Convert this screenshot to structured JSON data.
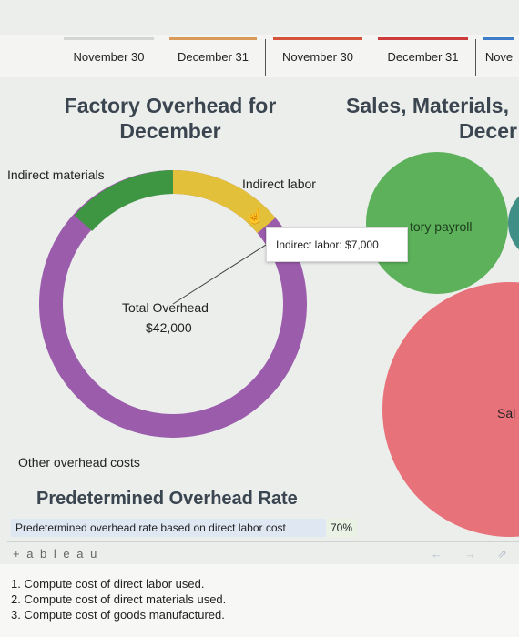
{
  "tabs": [
    {
      "label": "November 30",
      "color": "#d4d6d4"
    },
    {
      "label": "December 31",
      "color": "#d99a5a"
    },
    {
      "label": "November 30",
      "color": "#d5533a"
    },
    {
      "label": "December 31",
      "color": "#cc3c3c"
    },
    {
      "label": "Nove",
      "color": "#3d7cc9"
    }
  ],
  "left_panel": {
    "title_line1": "Factory Overhead for",
    "title_line2": "December",
    "donut_labels": {
      "indirect_materials": "Indirect materials",
      "indirect_labor": "Indirect labor",
      "other": "Other overhead costs"
    },
    "center_line1": "Total Overhead",
    "center_line2": "$42,000",
    "tooltip": "Indirect labor: $7,000"
  },
  "right_panel": {
    "title_line1": "Sales, Materials,",
    "title_line2": "Decer",
    "bubble_label_payroll": "tory payroll",
    "bubble_label_sales": "Sal"
  },
  "rate": {
    "title": "Predetermined Overhead Rate",
    "label": "Predetermined overhead rate based on direct labor cost",
    "value": "70%"
  },
  "tableau": {
    "logo": "+ a b l e a u"
  },
  "questions": [
    "1. Compute cost of direct labor used.",
    "2. Compute cost of direct materials used.",
    "3. Compute cost of goods manufactured."
  ],
  "colors": {
    "other_overhead": "#9a5cab",
    "indirect_materials": "#3e9643",
    "indirect_labor": "#e3c03a",
    "bubble_green": "#4daa4a",
    "bubble_red": "#e8727a"
  }
}
